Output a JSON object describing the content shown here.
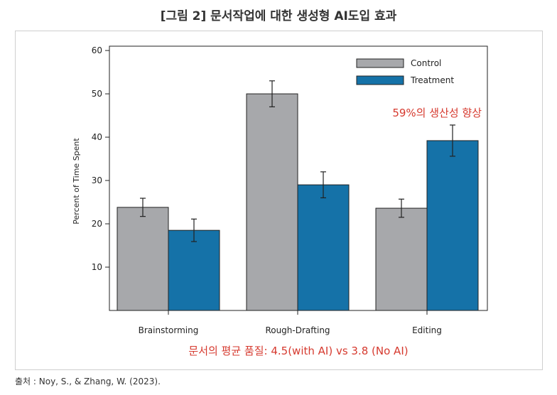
{
  "title": "[그림 2] 문서작업에 대한 생성형 AI도입 효과",
  "source": "출처 : Noy, S., & Zhang, W. (2023).",
  "chart_data": {
    "type": "bar",
    "categories": [
      "Brainstorming",
      "Rough-Drafting",
      "Editing"
    ],
    "ylabel": "Percent of Time Spent",
    "xlabel": "",
    "ylim": [
      0,
      61
    ],
    "yticks": [
      10,
      20,
      30,
      40,
      50,
      60
    ],
    "grid": false,
    "legend_position": "top-right",
    "series": [
      {
        "name": "Control",
        "color": "#a7a8ab",
        "values": [
          23.8,
          50.0,
          23.6
        ],
        "error": [
          2.1,
          3.0,
          2.1
        ]
      },
      {
        "name": "Treatment",
        "color": "#1572a8",
        "values": [
          18.5,
          29.0,
          39.2
        ],
        "error": [
          2.6,
          3.0,
          3.6
        ]
      }
    ],
    "annotations": [
      {
        "text": "59%의 생산성 향상",
        "color": "#d63a2f"
      },
      {
        "text": "문서의 평균 품질: 4.5(with AI) vs 3.8 (No AI)",
        "color": "#d63a2f"
      }
    ]
  }
}
